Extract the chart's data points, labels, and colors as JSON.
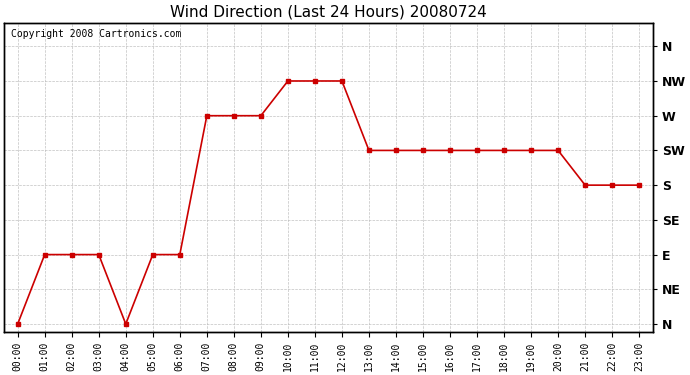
{
  "title": "Wind Direction (Last 24 Hours) 20080724",
  "copyright": "Copyright 2008 Cartronics.com",
  "hours": [
    0,
    1,
    2,
    3,
    4,
    5,
    6,
    7,
    8,
    9,
    10,
    11,
    12,
    13,
    14,
    15,
    16,
    17,
    18,
    19,
    20,
    21,
    22,
    23
  ],
  "directions": [
    0,
    90,
    90,
    90,
    0,
    90,
    90,
    270,
    270,
    270,
    315,
    315,
    315,
    225,
    225,
    225,
    225,
    225,
    225,
    225,
    225,
    180,
    180,
    180
  ],
  "ytick_vals": [
    360,
    315,
    270,
    225,
    180,
    135,
    90,
    45,
    0
  ],
  "ylabels_right": [
    "N",
    "NW",
    "W",
    "SW",
    "S",
    "SE",
    "E",
    "NE",
    "N"
  ],
  "line_color": "#cc0000",
  "marker": "s",
  "marker_size": 3,
  "bg_color": "#ffffff",
  "grid_color": "#bbbbbb",
  "figure_bg": "#ffffff",
  "xlabel_fontsize": 7,
  "ylabel_fontsize": 9,
  "title_fontsize": 11,
  "copyright_fontsize": 7,
  "ymin": -10,
  "ymax": 390
}
